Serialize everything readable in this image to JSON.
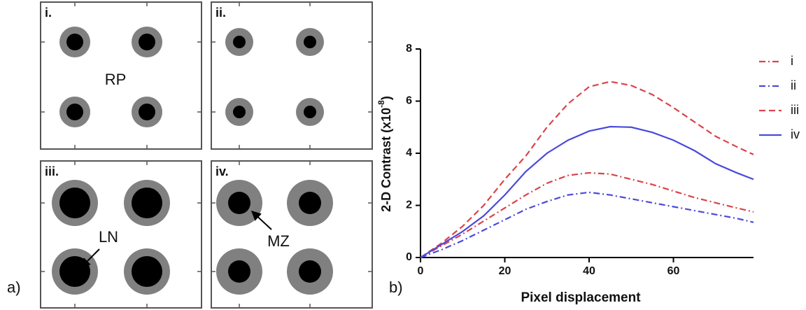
{
  "panel_a": {
    "label": "a)",
    "panels": [
      {
        "label": "i."
      },
      {
        "label": "ii."
      },
      {
        "label": "iii."
      },
      {
        "label": "iv."
      }
    ],
    "annotations": [
      "RP",
      "LN",
      "MZ"
    ]
  },
  "chart_data": {
    "type": "line",
    "label": "b)",
    "xlabel": "Pixel displacement",
    "ylabel": {
      "text": "2-D Contrast (x10",
      "superscript": "-8",
      "end": ")"
    },
    "x": [
      0,
      5,
      10,
      15,
      20,
      25,
      30,
      35,
      40,
      45,
      50,
      55,
      60,
      65,
      70,
      75,
      79
    ],
    "series": [
      {
        "name": "i",
        "color": "#d9444a",
        "dash": "9 4 2 4",
        "values": [
          0,
          0.45,
          0.9,
          1.4,
          1.9,
          2.4,
          2.85,
          3.15,
          3.25,
          3.2,
          3.0,
          2.8,
          2.55,
          2.3,
          2.1,
          1.9,
          1.75
        ]
      },
      {
        "name": "ii",
        "color": "#4a4adb",
        "dash": "9 4 2 4",
        "values": [
          0,
          0.3,
          0.65,
          1.05,
          1.45,
          1.85,
          2.15,
          2.4,
          2.5,
          2.4,
          2.25,
          2.1,
          1.95,
          1.8,
          1.65,
          1.5,
          1.35
        ]
      },
      {
        "name": "iii",
        "color": "#d9444a",
        "dash": "9 5",
        "values": [
          0,
          0.55,
          1.2,
          2.0,
          3.0,
          3.9,
          5.0,
          5.9,
          6.55,
          6.75,
          6.6,
          6.25,
          5.75,
          5.2,
          4.65,
          4.25,
          3.95
        ]
      },
      {
        "name": "iv",
        "color": "#4a4adb",
        "dash": "none",
        "values": [
          0,
          0.5,
          1.0,
          1.6,
          2.4,
          3.3,
          4.0,
          4.5,
          4.85,
          5.02,
          5.0,
          4.8,
          4.5,
          4.1,
          3.6,
          3.25,
          3.0
        ]
      }
    ],
    "xlim": [
      0,
      79
    ],
    "xticks": [
      0,
      20,
      40,
      60
    ],
    "ylim": [
      0,
      8
    ],
    "yticks": [
      0,
      2,
      4,
      6,
      8
    ],
    "legend": "right"
  }
}
